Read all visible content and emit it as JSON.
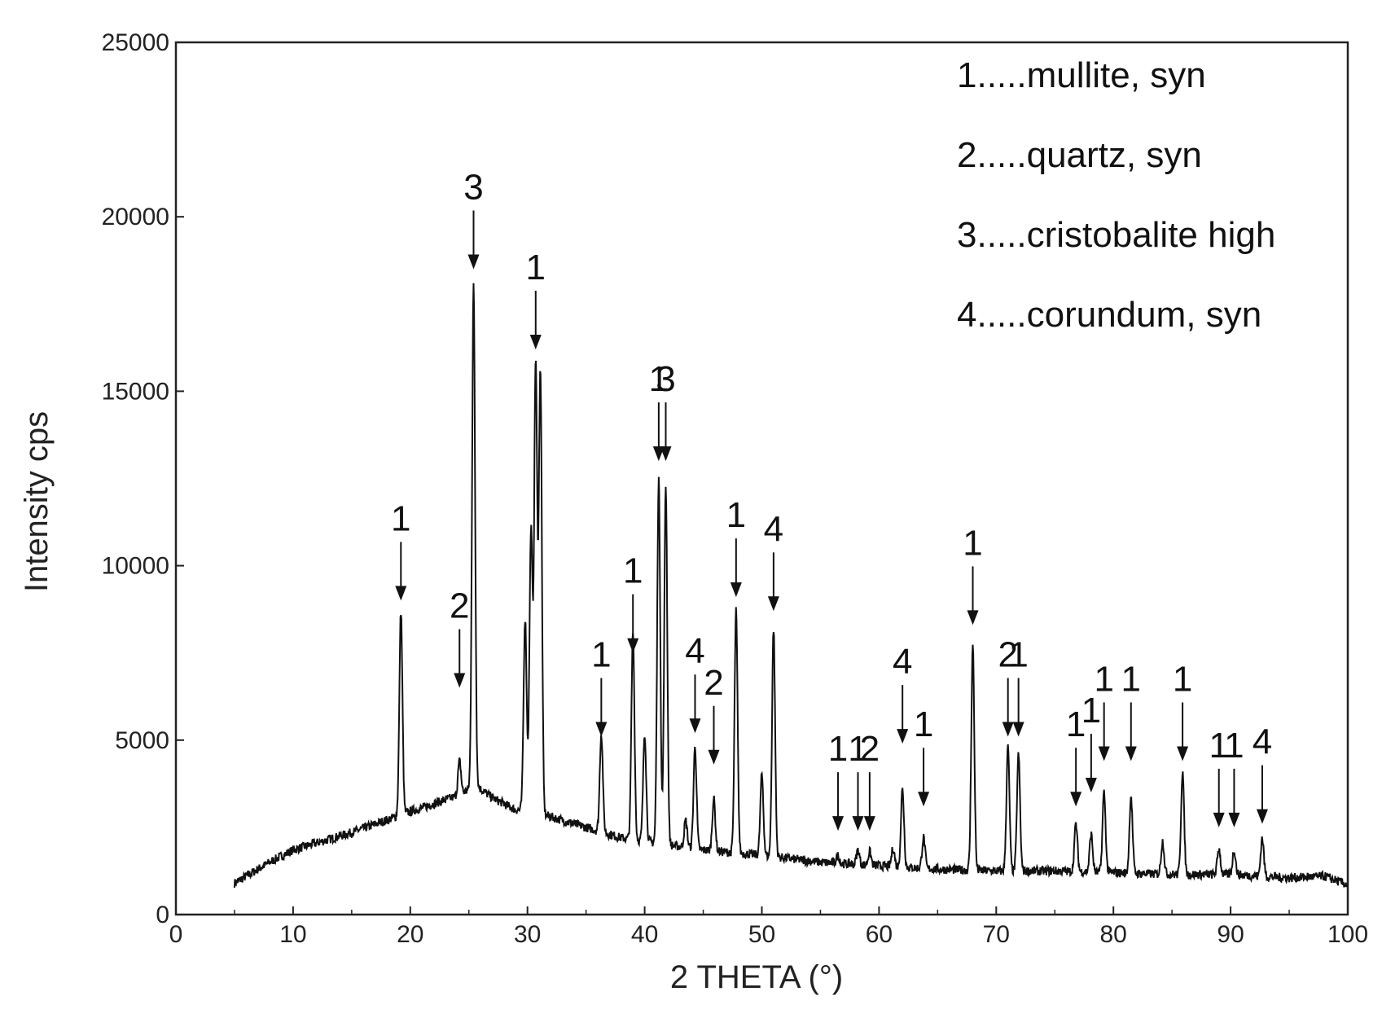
{
  "chart_data": {
    "type": "line",
    "xlabel": "2 THETA (°)",
    "ylabel": "Intensity cps",
    "xlim": [
      0,
      100
    ],
    "ylim": [
      0,
      25000
    ],
    "x_ticks": [
      "0",
      "10",
      "20",
      "30",
      "40",
      "50",
      "60",
      "70",
      "80",
      "90",
      "100"
    ],
    "y_ticks": [
      "0",
      "5000",
      "10000",
      "15000",
      "20000",
      "25000"
    ],
    "grid": false,
    "legend_position": "top-right",
    "legend": [
      "1.....mullite, syn",
      "2.....quartz, syn",
      "3.....cristobalite high",
      "4.....corundum, syn"
    ],
    "series_color": "#111111",
    "background": [
      [
        5,
        900
      ],
      [
        8,
        1500
      ],
      [
        10,
        1850
      ],
      [
        15,
        2350
      ],
      [
        20,
        2950
      ],
      [
        24,
        3400
      ],
      [
        25.6,
        3700
      ],
      [
        27,
        3350
      ],
      [
        29,
        3000
      ],
      [
        30,
        3000
      ],
      [
        32,
        2800
      ],
      [
        35,
        2500
      ],
      [
        38,
        2200
      ],
      [
        42,
        2000
      ],
      [
        45,
        1850
      ],
      [
        50,
        1700
      ],
      [
        55,
        1500
      ],
      [
        60,
        1400
      ],
      [
        65,
        1300
      ],
      [
        70,
        1250
      ],
      [
        75,
        1250
      ],
      [
        80,
        1200
      ],
      [
        85,
        1150
      ],
      [
        90,
        1150
      ],
      [
        95,
        1050
      ],
      [
        98,
        1100
      ],
      [
        100,
        850
      ]
    ],
    "peaks": [
      {
        "x": 19.2,
        "y": 8700,
        "annotation": "1",
        "ann_y": 9000
      },
      {
        "x": 24.2,
        "y": 4400,
        "annotation": "2",
        "ann_y": 6500
      },
      {
        "x": 25.4,
        "y": 18000,
        "annotation": "3",
        "ann_y": 18500
      },
      {
        "x": 29.8,
        "y": 8500
      },
      {
        "x": 30.3,
        "y": 11000
      },
      {
        "x": 30.7,
        "y": 15800,
        "annotation": "1",
        "ann_y": 16200
      },
      {
        "x": 31.1,
        "y": 15600
      },
      {
        "x": 36.3,
        "y": 5200,
        "annotation": "1",
        "ann_y": 5100
      },
      {
        "x": 39.0,
        "y": 8100,
        "annotation": "1",
        "ann_y": 7500
      },
      {
        "x": 40.0,
        "y": 5200
      },
      {
        "x": 41.2,
        "y": 12500,
        "annotation": "1",
        "ann_y": 13000
      },
      {
        "x": 41.8,
        "y": 12300,
        "annotation": "3",
        "ann_y": 13000
      },
      {
        "x": 43.5,
        "y": 2700
      },
      {
        "x": 44.3,
        "y": 4800,
        "annotation": "4",
        "ann_y": 5200
      },
      {
        "x": 45.9,
        "y": 3300,
        "annotation": "2",
        "ann_y": 4300
      },
      {
        "x": 47.8,
        "y": 8700,
        "annotation": "1",
        "ann_y": 9100
      },
      {
        "x": 50.0,
        "y": 4000
      },
      {
        "x": 51.0,
        "y": 8200,
        "annotation": "4",
        "ann_y": 8700
      },
      {
        "x": 56.5,
        "y": 1700,
        "annotation": "1",
        "ann_y": 2400
      },
      {
        "x": 58.2,
        "y": 1850,
        "annotation": "1",
        "ann_y": 2400
      },
      {
        "x": 59.2,
        "y": 1800,
        "annotation": "2",
        "ann_y": 2400
      },
      {
        "x": 61.2,
        "y": 1900
      },
      {
        "x": 62.0,
        "y": 3600,
        "annotation": "4",
        "ann_y": 4900
      },
      {
        "x": 63.8,
        "y": 2200,
        "annotation": "1",
        "ann_y": 3100
      },
      {
        "x": 68.0,
        "y": 7700,
        "annotation": "1",
        "ann_y": 8300
      },
      {
        "x": 71.0,
        "y": 4800,
        "annotation": "2",
        "ann_y": 5100
      },
      {
        "x": 71.9,
        "y": 4600,
        "annotation": "1",
        "ann_y": 5100
      },
      {
        "x": 76.8,
        "y": 2600,
        "annotation": "1",
        "ann_y": 3100
      },
      {
        "x": 78.1,
        "y": 2300,
        "annotation": "1",
        "ann_y": 3500
      },
      {
        "x": 79.2,
        "y": 3500,
        "annotation": "1",
        "ann_y": 4400
      },
      {
        "x": 81.5,
        "y": 3400,
        "annotation": "1",
        "ann_y": 4400
      },
      {
        "x": 84.2,
        "y": 2100
      },
      {
        "x": 85.9,
        "y": 4100,
        "annotation": "1",
        "ann_y": 4400
      },
      {
        "x": 89.0,
        "y": 1900,
        "annotation": "1",
        "ann_y": 2500
      },
      {
        "x": 90.3,
        "y": 1850,
        "annotation": "1",
        "ann_y": 2500
      },
      {
        "x": 92.7,
        "y": 2200,
        "annotation": "4",
        "ann_y": 2600
      }
    ]
  }
}
